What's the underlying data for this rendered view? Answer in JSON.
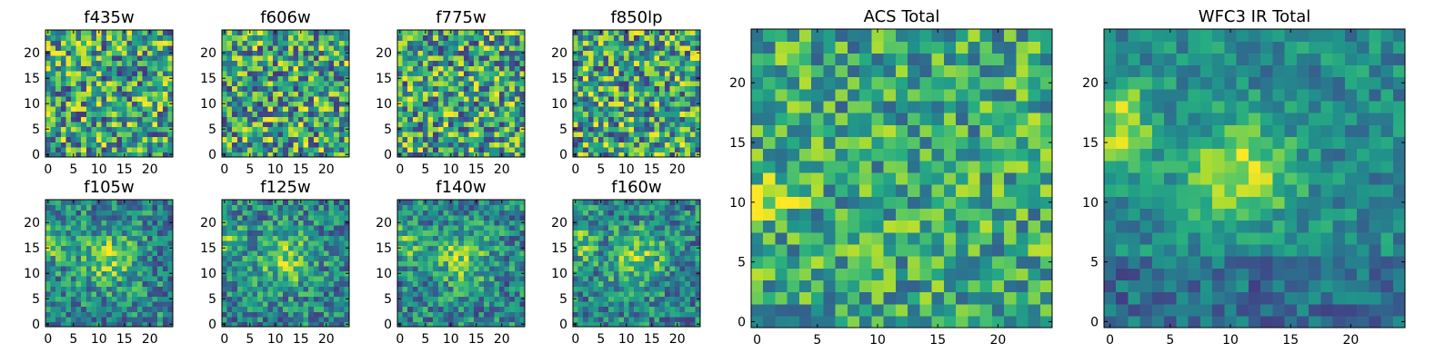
{
  "figure": {
    "colormap": "viridis",
    "colors": [
      "#440154",
      "#31688e",
      "#35b779",
      "#fde725"
    ]
  },
  "chart_data": [
    {
      "type": "heatmap",
      "title": "f435w",
      "grid": [
        25,
        25
      ],
      "xlim": [
        0,
        24
      ],
      "ylim": [
        0,
        24
      ],
      "xticks": [
        "0",
        "5",
        "10",
        "15",
        "20"
      ],
      "yticks": [
        "0",
        "5",
        "10",
        "15",
        "20"
      ],
      "seed": 11,
      "blob": null
    },
    {
      "type": "heatmap",
      "title": "f606w",
      "grid": [
        25,
        25
      ],
      "xlim": [
        0,
        24
      ],
      "ylim": [
        0,
        24
      ],
      "xticks": [
        "0",
        "5",
        "10",
        "15",
        "20"
      ],
      "yticks": [
        "0",
        "5",
        "10",
        "15",
        "20"
      ],
      "seed": 23,
      "blob": null
    },
    {
      "type": "heatmap",
      "title": "f775w",
      "grid": [
        25,
        25
      ],
      "xlim": [
        0,
        24
      ],
      "ylim": [
        0,
        24
      ],
      "xticks": [
        "0",
        "5",
        "10",
        "15",
        "20"
      ],
      "yticks": [
        "0",
        "5",
        "10",
        "15",
        "20"
      ],
      "seed": 37,
      "blob": null
    },
    {
      "type": "heatmap",
      "title": "f850lp",
      "grid": [
        25,
        25
      ],
      "xlim": [
        0,
        24
      ],
      "ylim": [
        0,
        24
      ],
      "xticks": [
        "0",
        "5",
        "10",
        "15",
        "20"
      ],
      "yticks": [
        "0",
        "5",
        "10",
        "15",
        "20"
      ],
      "seed": 41,
      "blob": null
    },
    {
      "type": "heatmap",
      "title": "f105w",
      "grid": [
        25,
        25
      ],
      "xlim": [
        0,
        24
      ],
      "ylim": [
        0,
        24
      ],
      "xticks": [
        "0",
        "5",
        "10",
        "15",
        "20"
      ],
      "yticks": [
        "0",
        "5",
        "10",
        "15",
        "20"
      ],
      "seed": 53,
      "blob": "ir"
    },
    {
      "type": "heatmap",
      "title": "f125w",
      "grid": [
        25,
        25
      ],
      "xlim": [
        0,
        24
      ],
      "ylim": [
        0,
        24
      ],
      "xticks": [
        "0",
        "5",
        "10",
        "15",
        "20"
      ],
      "yticks": [
        "0",
        "5",
        "10",
        "15",
        "20"
      ],
      "seed": 67,
      "blob": "ir"
    },
    {
      "type": "heatmap",
      "title": "f140w",
      "grid": [
        25,
        25
      ],
      "xlim": [
        0,
        24
      ],
      "ylim": [
        0,
        24
      ],
      "xticks": [
        "0",
        "5",
        "10",
        "15",
        "20"
      ],
      "yticks": [
        "0",
        "5",
        "10",
        "15",
        "20"
      ],
      "seed": 71,
      "blob": "ir"
    },
    {
      "type": "heatmap",
      "title": "f160w",
      "grid": [
        25,
        25
      ],
      "xlim": [
        0,
        24
      ],
      "ylim": [
        0,
        24
      ],
      "xticks": [
        "0",
        "5",
        "10",
        "15",
        "20"
      ],
      "yticks": [
        "0",
        "5",
        "10",
        "15",
        "20"
      ],
      "seed": 83,
      "blob": "ir"
    },
    {
      "type": "heatmap",
      "title": "ACS Total",
      "grid": [
        25,
        25
      ],
      "xlim": [
        0,
        24
      ],
      "ylim": [
        0,
        24
      ],
      "xticks": [
        "0",
        "5",
        "10",
        "15",
        "20"
      ],
      "yticks": [
        "0",
        "5",
        "10",
        "15",
        "20"
      ],
      "seed": 97,
      "blob": "acs"
    },
    {
      "type": "heatmap",
      "title": "WFC3 IR Total",
      "grid": [
        25,
        25
      ],
      "xlim": [
        0,
        24
      ],
      "ylim": [
        0,
        24
      ],
      "xticks": [
        "0",
        "5",
        "10",
        "15",
        "20"
      ],
      "yticks": [
        "0",
        "5",
        "10",
        "15",
        "20"
      ],
      "seed": 101,
      "blob": "irtotal"
    }
  ]
}
